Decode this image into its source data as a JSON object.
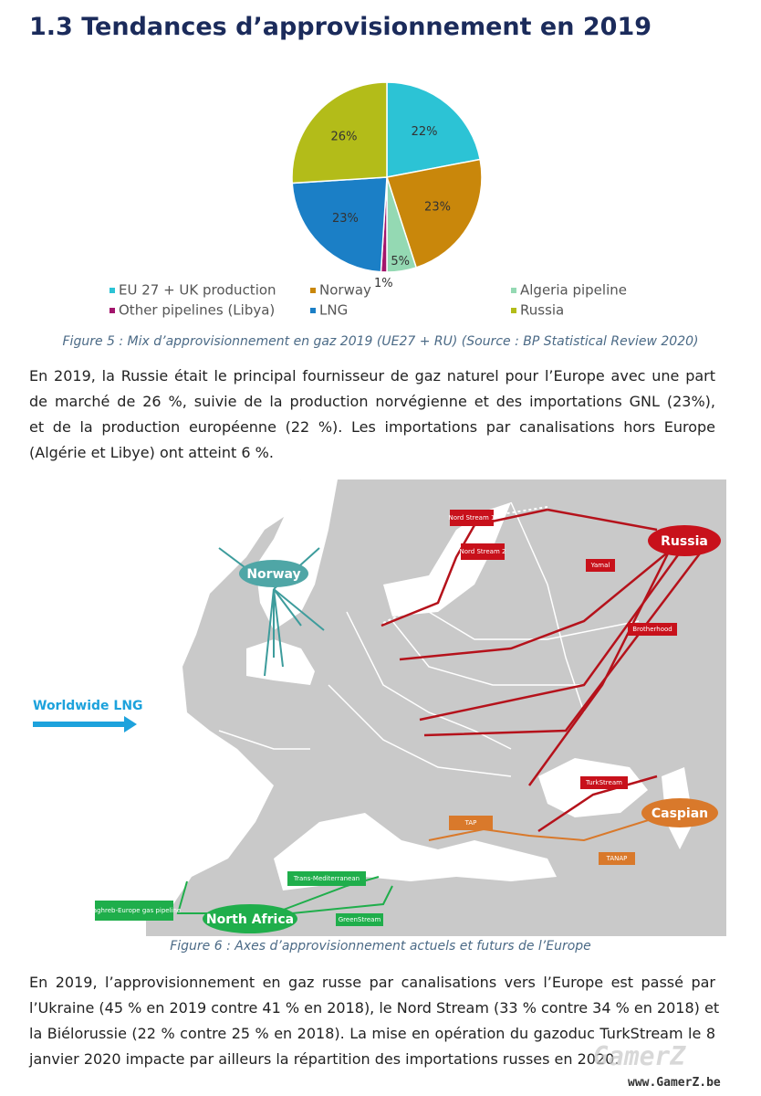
{
  "heading": "1.3 Tendances d’approvisionnement en 2019",
  "chart_data": {
    "type": "pie",
    "series": [
      {
        "name": "EU 27 + UK production",
        "color": "#2cc3d5",
        "values": [
          22
        ],
        "value_labels": [
          "22%"
        ]
      },
      {
        "name": "Norway",
        "color": "#c9870b",
        "values": [
          23
        ],
        "value_labels": [
          "23%"
        ]
      },
      {
        "name": "Algeria pipeline",
        "color": "#94d9b3",
        "values": [
          5
        ],
        "value_labels": [
          "5%"
        ]
      },
      {
        "name": "Other pipelines (Libya)",
        "color": "#a3156c",
        "values": [
          1
        ],
        "value_labels": [
          "1%"
        ]
      },
      {
        "name": "LNG",
        "color": "#1b7fc6",
        "values": [
          23
        ],
        "value_labels": [
          "23%"
        ]
      },
      {
        "name": "Russia",
        "color": "#b3bc19",
        "values": [
          26
        ],
        "value_labels": [
          "26%"
        ]
      }
    ]
  },
  "captions": [
    "Figure 5 : Mix d’approvisionnement en gaz 2019 (UE27 + RU) (Source : BP Statistical Review 2020)",
    "Figure 6 : Axes d’approvisionnement actuels et futurs de l’Europe"
  ],
  "paragraphs": [
    [
      "En 2019, la Russie était le principal fournisseur de gaz naturel pour l’Europe avec une part",
      "de marché de 26 %, suivie de la production norvégienne et des importations GNL (23%),",
      "et de la production européenne (22 %). Les importations par canalisations hors Europe",
      "(Algérie et Libye) ont atteint 6 %."
    ],
    [
      "En 2019, l’approvisionnement en gaz russe par canalisations vers l’Europe est passé par",
      "l’Ukraine (45 % en 2019 contre 41 % en 2018), le Nord Stream (33 % contre 34 % en 2018) et",
      "la Biélorussie (22 % contre 25 % en 2018). La mise en opération du gazoduc TurkStream le 8",
      "janvier 2020 impacte par ailleurs la répartition des importations russes en 2020."
    ]
  ],
  "map": {
    "regions": [
      "Norway",
      "Russia",
      "Caspian",
      "North Africa"
    ],
    "lng": "Worldwide LNG",
    "pipelines": [
      "Nord Stream 1",
      "Nord Stream 2",
      "Yamal",
      "Brotherhood",
      "TurkStream",
      "TAP",
      "TANAP",
      "Trans-Mediterranean",
      "Maghreb-Europe gas pipeline",
      "GreenStream"
    ]
  },
  "watermark": {
    "logo": "GamerZ",
    "url": "www.GamerZ.be"
  }
}
